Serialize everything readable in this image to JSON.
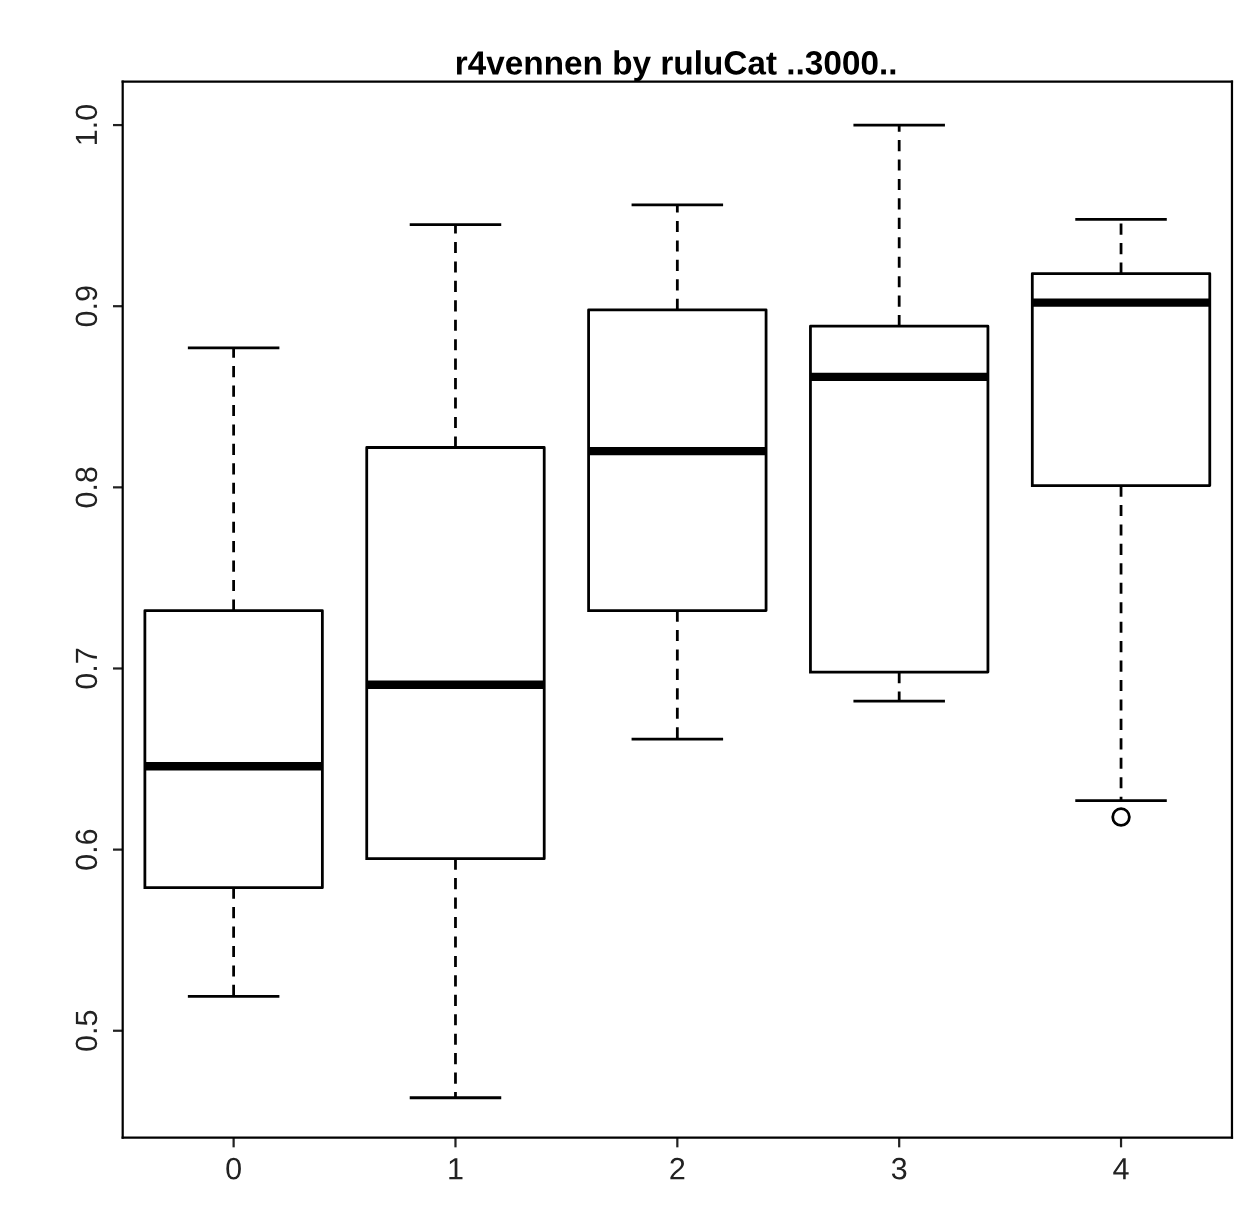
{
  "chart_data": {
    "type": "box",
    "title": "r4vennen by ruluCat ..3000..",
    "categories": [
      "0",
      "1",
      "2",
      "3",
      "4"
    ],
    "boxes": [
      {
        "low": 0.519,
        "q1": 0.579,
        "median": 0.646,
        "q3": 0.732,
        "high": 0.877
      },
      {
        "low": 0.463,
        "q1": 0.595,
        "median": 0.691,
        "q3": 0.822,
        "high": 0.945
      },
      {
        "low": 0.661,
        "q1": 0.732,
        "median": 0.82,
        "q3": 0.898,
        "high": 0.956
      },
      {
        "low": 0.682,
        "q1": 0.698,
        "median": 0.861,
        "q3": 0.889,
        "high": 1.0
      },
      {
        "low": 0.627,
        "q1": 0.801,
        "median": 0.902,
        "q3": 0.918,
        "high": 0.948,
        "outliers": [
          0.618
        ]
      }
    ],
    "ylim": [
      0.441,
      1.024
    ],
    "yticks": [
      0.5,
      0.6,
      0.7,
      0.8,
      0.9,
      {
        "value": 1.0,
        "label": "1.0"
      }
    ],
    "grid": false
  }
}
